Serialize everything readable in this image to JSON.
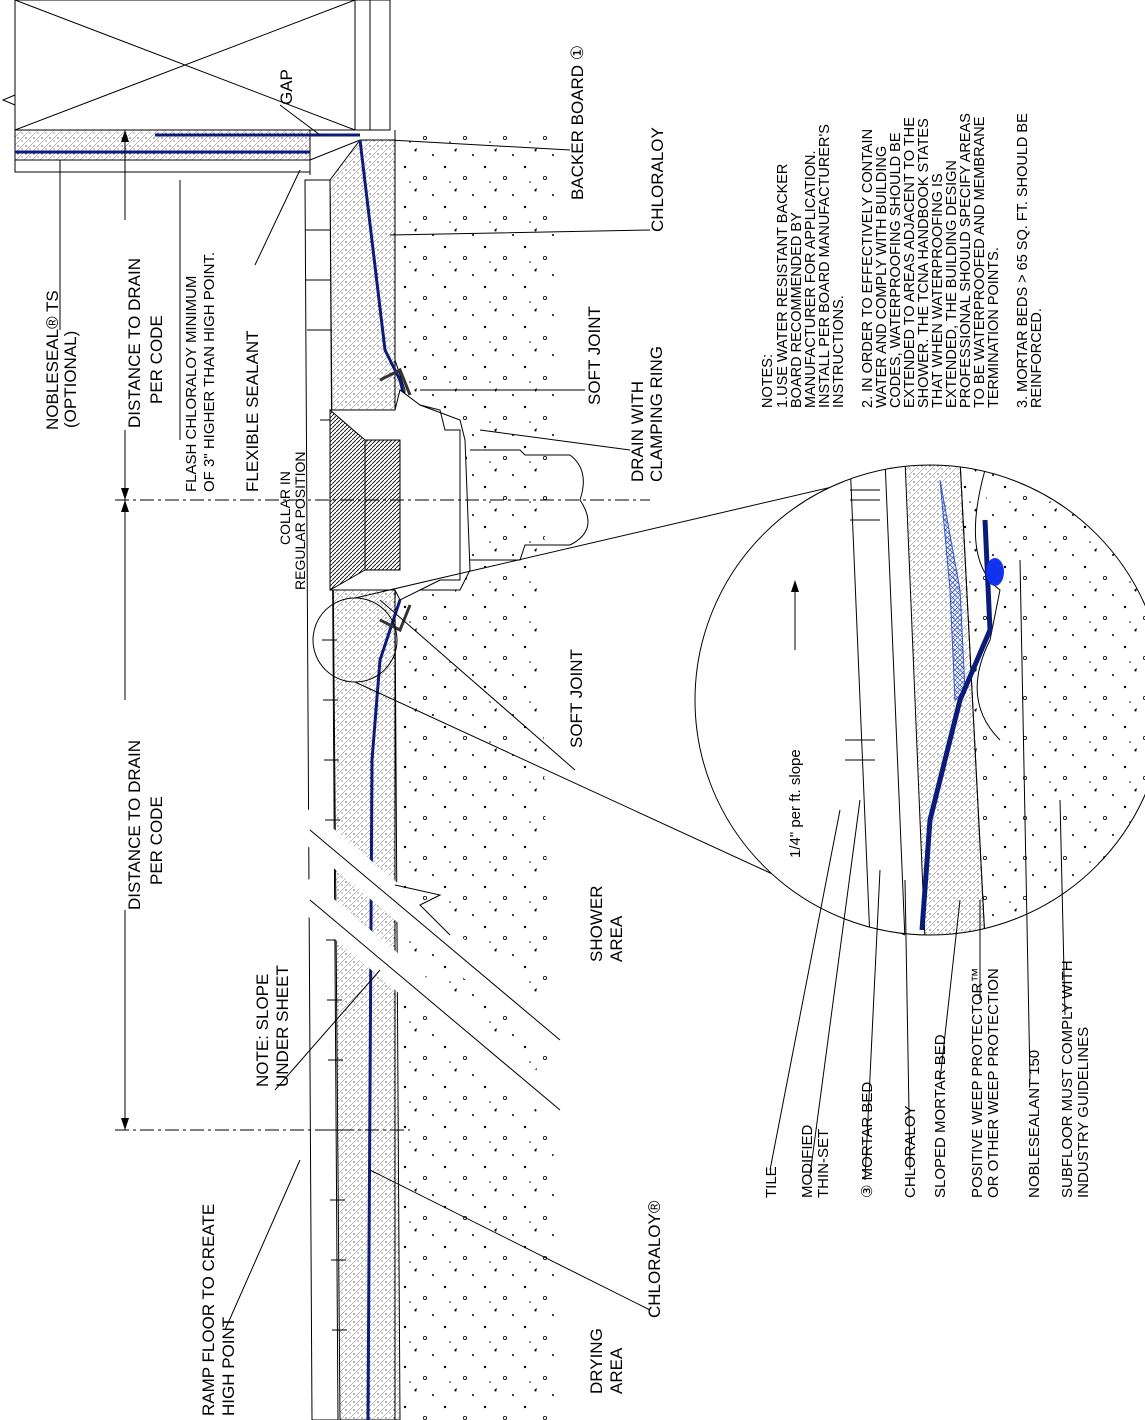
{
  "labels": {
    "backer_board": "BACKER BOARD ①",
    "chloraloy_top": "CHLORALOY",
    "gap": "GAP",
    "nobleseal_ts": "NOBLESEAL® TS",
    "optional": "(OPTIONAL)",
    "distance_top_1": "DISTANCE TO DRAIN",
    "distance_top_2": "PER CODE",
    "flash_1": "FLASH CHLORALOY MINIMUM",
    "flash_2": "OF 3\" HIGHER THAN HIGH POINT.",
    "flexible_sealant": "FLEXIBLE SEALANT",
    "collar_1": "COLLAR IN",
    "collar_2": "REGULAR POSITION",
    "soft_joint_top": "SOFT JOINT",
    "drain_1": "DRAIN WITH",
    "drain_2": "CLAMPING RING",
    "soft_joint_bottom": "SOFT JOINT",
    "distance_bottom_1": "DISTANCE TO DRAIN",
    "distance_bottom_2": "PER CODE",
    "note_slope_1": "NOTE: SLOPE",
    "note_slope_2": "UNDER SHEET",
    "shower_1": "SHOWER",
    "shower_2": "AREA",
    "ramp_1": "RAMP FLOOR TO CREATE",
    "ramp_2": "HIGH POINT",
    "chloraloy_bottom": "CHLORALOY®",
    "drying_1": "DRYING",
    "drying_2": "AREA",
    "slope": "1/4\" per ft.  slope"
  },
  "notes": [
    "NOTES:",
    "1.USE WATER RESISTANT BACKER",
    "BOARD RECOMMENDED BY",
    "MANUFACTURER FOR APPLICATION.",
    "INSTALL PER BOARD MANUFACTURER'S",
    "INSTRUCTIONS.",
    "2. IN ORDER TO EFFECTIVELY CONTAIN",
    "WATER AND COMPLY WITH BUILDING",
    "CODES, WATERPROOFING SHOULD BE",
    "EXTENDED TO AREAS ADJACENT TO THE",
    "SHOWER. THE TCNA HANDBOOK STATES",
    "THAT WHEN WATERPROOFING IS",
    "EXTENDED, THE BUILDING DESIGN",
    "PROFESSIONAL SHOULD SPECIFY AREAS",
    "TO BE WATERPROOFED AND MEMBRANE",
    "TERMINATION POINTS.",
    "3. MORTAR BEDS > 65 SQ. FT. SHOULD BE",
    "REINFORCED."
  ],
  "legend": [
    "TILE",
    "MODIFIED",
    "THIN-SET",
    "③ MORTAR BED",
    "CHLORALOY",
    "SLOPED MORTAR BED",
    "POSITIVE WEEP PROTECTOR™",
    "OR OTHER WEEP PROTECTION",
    "NOBLESEALANT 150",
    "SUBFLOOR MUST COMPLY WITH",
    "INDUSTRY GUIDELINES"
  ]
}
